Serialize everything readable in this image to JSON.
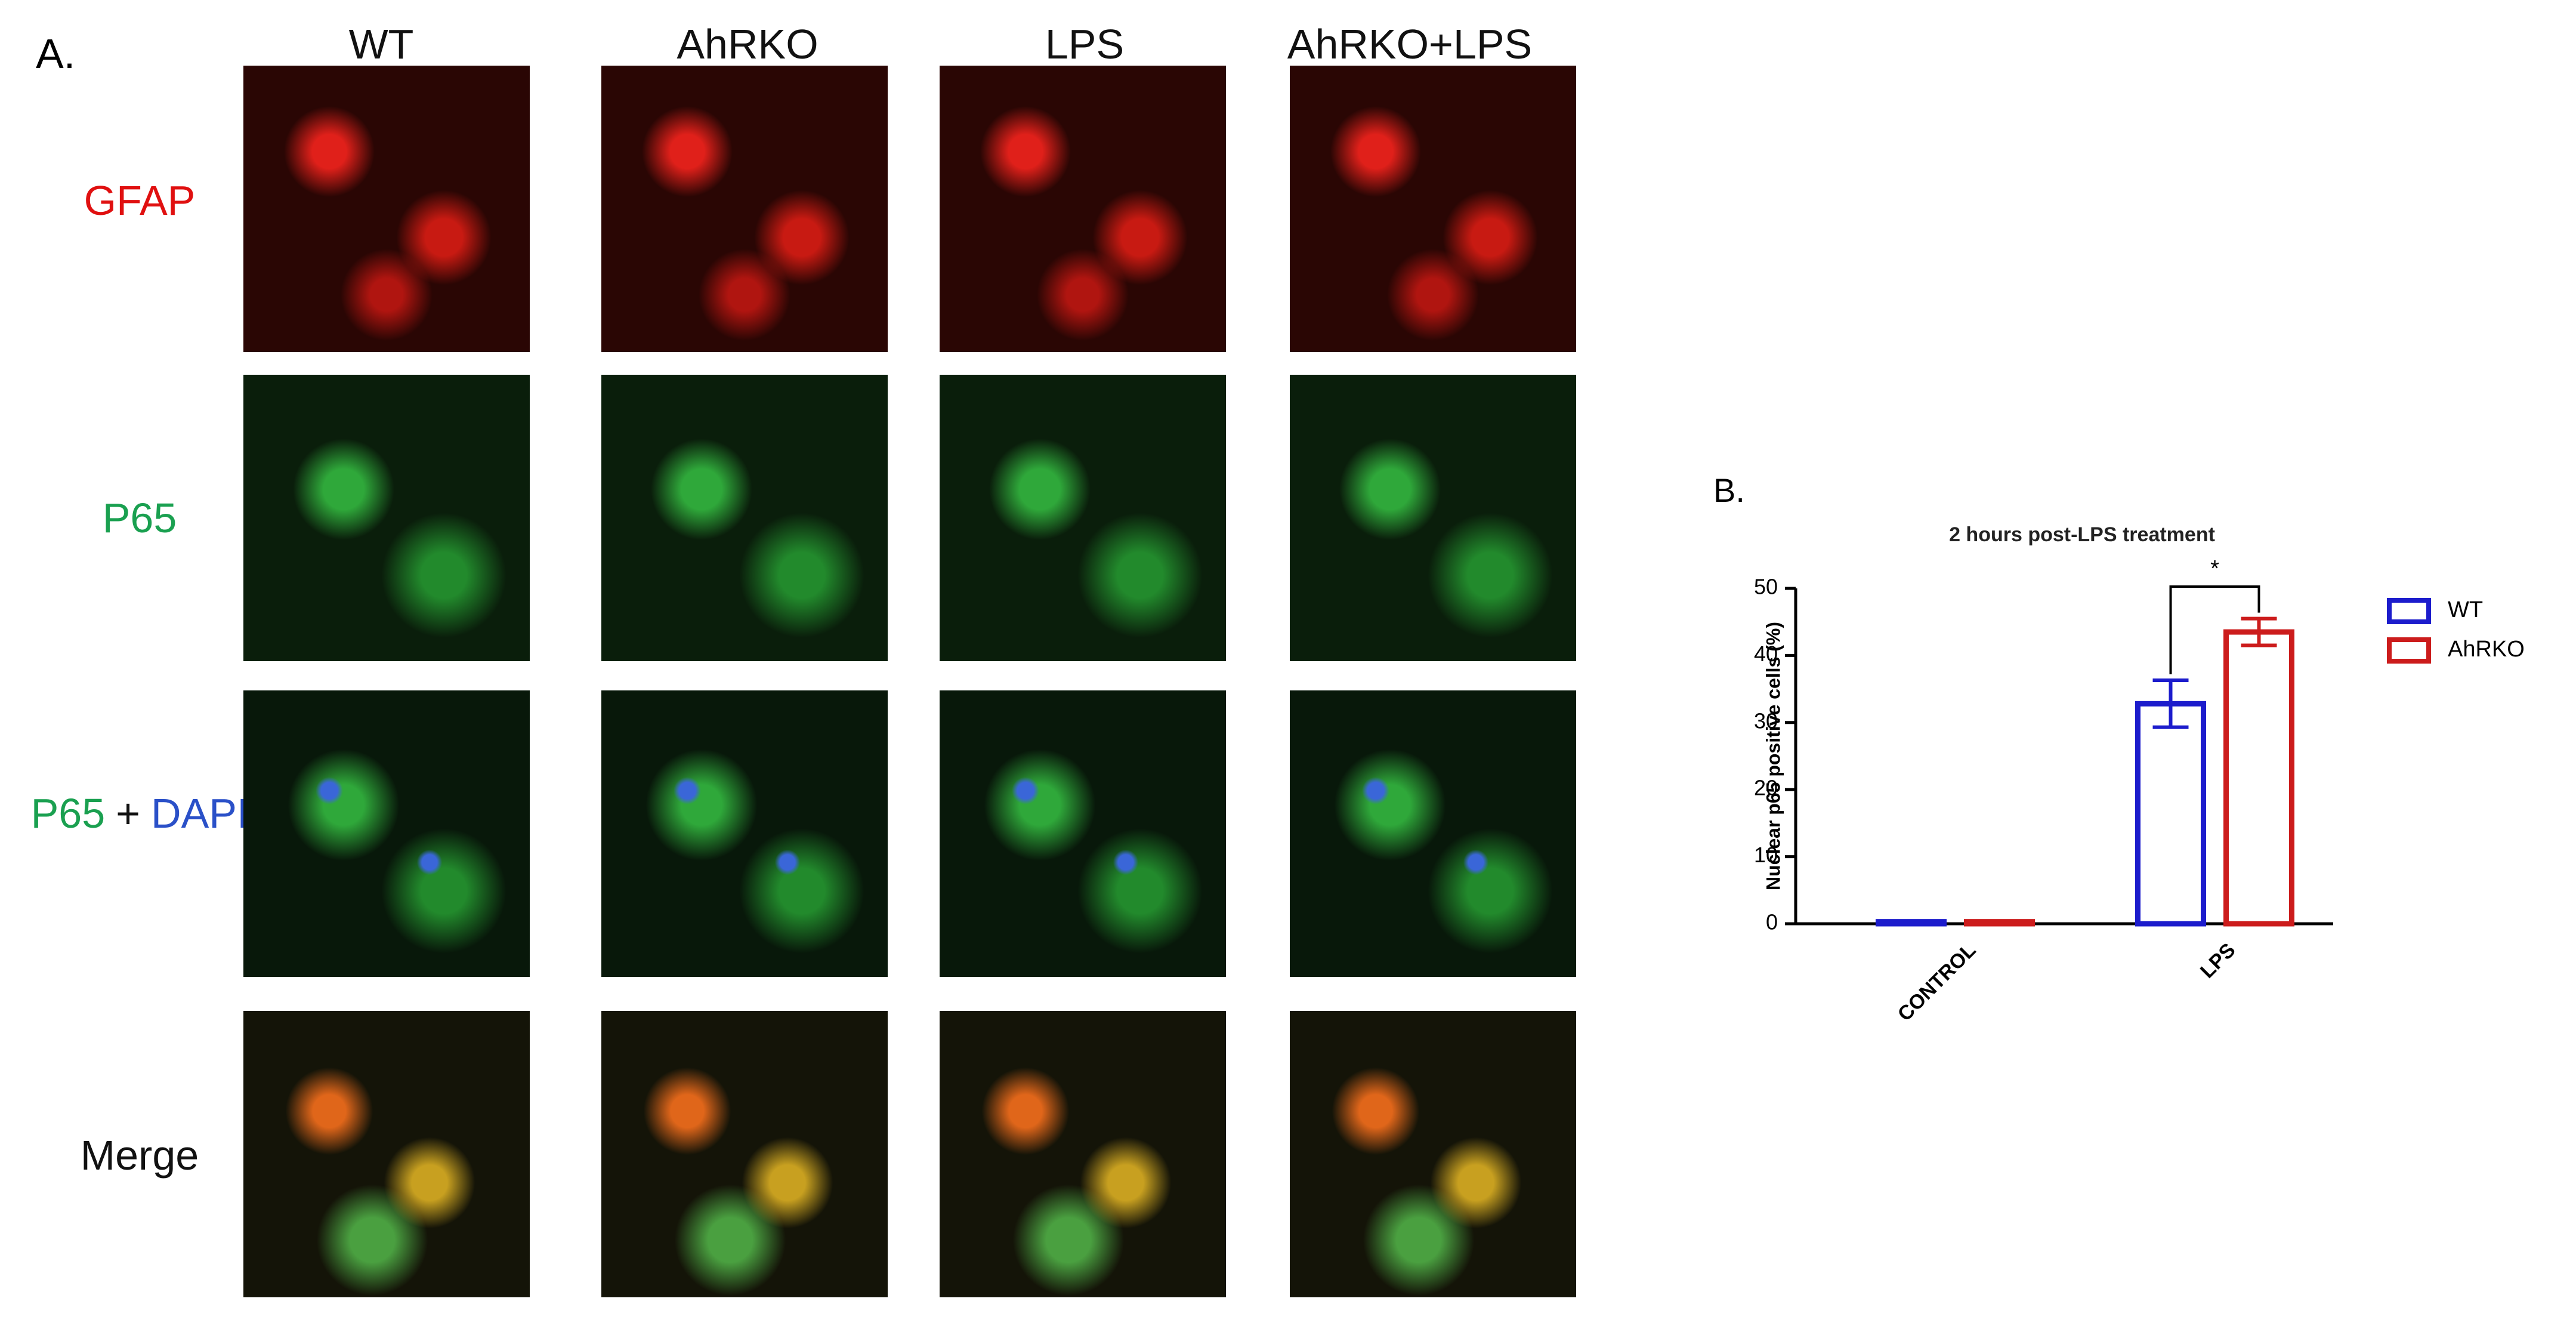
{
  "panel_a": {
    "label": "A.",
    "columns": [
      "WT",
      "AhRKO",
      "LPS",
      "AhRKO+LPS"
    ],
    "rows": [
      [
        "GFAP"
      ],
      [
        "P65"
      ],
      [
        "P65",
        "+",
        "DAPI"
      ],
      [
        "Merge"
      ]
    ]
  },
  "chart_data": {
    "type": "bar",
    "panel_label": "B.",
    "title": "2 hours post-LPS treatment",
    "y_label": "Nuclear p65 positive cells (%)",
    "categories": [
      "CONTROL",
      "LPS"
    ],
    "series": [
      {
        "name": "WT",
        "color": "#1c1ccc",
        "values": [
          0.3,
          32.8
        ],
        "errors": [
          0,
          3.5
        ]
      },
      {
        "name": "AhRKO",
        "color": "#cc1c1c",
        "values": [
          0.3,
          43.5
        ],
        "errors": [
          0,
          2
        ]
      }
    ],
    "ylim": [
      0,
      50
    ],
    "yticks": [
      0,
      10,
      20,
      30,
      40,
      50
    ],
    "annotation": "*",
    "legend": "right"
  }
}
